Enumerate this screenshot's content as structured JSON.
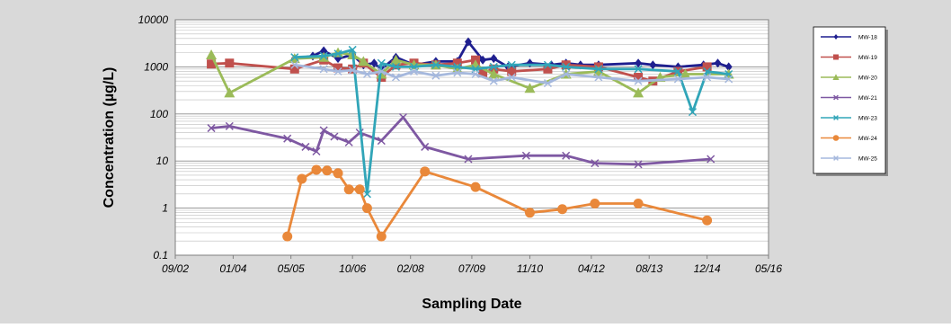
{
  "chart_data": {
    "type": "line",
    "title": "",
    "xlabel": "Sampling Date",
    "ylabel": "Concentration (µg/L)",
    "yscale": "log",
    "ylim": [
      0.1,
      10000
    ],
    "xlim": [
      "2002-09-01",
      "2016-05-01"
    ],
    "grid": true,
    "legend_position": "right",
    "x_ticks": [
      "09/02",
      "01/04",
      "05/05",
      "10/06",
      "02/08",
      "07/09",
      "11/10",
      "04/12",
      "08/13",
      "12/14",
      "05/16"
    ],
    "y_ticks": [
      "0.1",
      "1",
      "10",
      "100",
      "1000",
      "10000"
    ],
    "series": [
      {
        "name": "MW-18",
        "color": "#1f1f8f",
        "marker": "diamond",
        "points": [
          [
            "2005-06-01",
            1500
          ],
          [
            "2005-11-01",
            1700
          ],
          [
            "2006-02-01",
            2200
          ],
          [
            "2006-06-01",
            1500
          ],
          [
            "2006-10-01",
            1800
          ],
          [
            "2007-01-01",
            1100
          ],
          [
            "2007-04-01",
            1200
          ],
          [
            "2007-06-01",
            900
          ],
          [
            "2007-10-01",
            1600
          ],
          [
            "2008-03-01",
            1100
          ],
          [
            "2008-09-01",
            1300
          ],
          [
            "2009-03-01",
            1300
          ],
          [
            "2009-06-01",
            3400
          ],
          [
            "2009-10-01",
            1400
          ],
          [
            "2010-01-01",
            1500
          ],
          [
            "2010-05-01",
            1000
          ],
          [
            "2010-11-01",
            1200
          ],
          [
            "2011-05-01",
            1100
          ],
          [
            "2011-09-01",
            1200
          ],
          [
            "2012-01-01",
            1100
          ],
          [
            "2012-06-01",
            1100
          ],
          [
            "2013-05-01",
            1200
          ],
          [
            "2013-09-01",
            1100
          ],
          [
            "2014-04-01",
            1000
          ],
          [
            "2014-11-01",
            1100
          ],
          [
            "2015-03-01",
            1200
          ],
          [
            "2015-06-01",
            1000
          ]
        ]
      },
      {
        "name": "MW-19",
        "color": "#c0504d",
        "marker": "square",
        "points": [
          [
            "2003-07-01",
            1150
          ],
          [
            "2003-12-01",
            1200
          ],
          [
            "2005-06-01",
            900
          ],
          [
            "2006-02-01",
            1400
          ],
          [
            "2006-06-01",
            950
          ],
          [
            "2006-10-01",
            900
          ],
          [
            "2007-01-01",
            1200
          ],
          [
            "2007-06-01",
            600
          ],
          [
            "2007-10-01",
            1100
          ],
          [
            "2008-03-01",
            1200
          ],
          [
            "2008-09-01",
            1100
          ],
          [
            "2009-03-01",
            1200
          ],
          [
            "2009-08-01",
            1400
          ],
          [
            "2009-10-01",
            750
          ],
          [
            "2010-01-01",
            900
          ],
          [
            "2010-06-01",
            800
          ],
          [
            "2011-04-01",
            900
          ],
          [
            "2011-09-01",
            1100
          ],
          [
            "2012-06-01",
            1000
          ],
          [
            "2013-05-01",
            600
          ],
          [
            "2013-09-01",
            500
          ],
          [
            "2014-04-01",
            800
          ],
          [
            "2014-12-01",
            1000
          ]
        ]
      },
      {
        "name": "MW-20",
        "color": "#9bbb59",
        "marker": "triangle",
        "points": [
          [
            "2003-07-01",
            1800
          ],
          [
            "2003-12-01",
            280
          ],
          [
            "2005-06-01",
            1500
          ],
          [
            "2006-02-01",
            1600
          ],
          [
            "2006-06-01",
            2000
          ],
          [
            "2006-10-01",
            1800
          ],
          [
            "2007-01-01",
            1300
          ],
          [
            "2007-06-01",
            700
          ],
          [
            "2007-10-01",
            1400
          ],
          [
            "2008-03-01",
            1100
          ],
          [
            "2008-09-01",
            1100
          ],
          [
            "2009-03-01",
            900
          ],
          [
            "2009-08-01",
            1100
          ],
          [
            "2010-01-01",
            700
          ],
          [
            "2010-11-01",
            350
          ],
          [
            "2011-09-01",
            700
          ],
          [
            "2012-06-01",
            800
          ],
          [
            "2013-05-01",
            280
          ],
          [
            "2013-11-01",
            600
          ],
          [
            "2014-06-01",
            700
          ],
          [
            "2015-06-01",
            700
          ]
        ]
      },
      {
        "name": "MW-21",
        "color": "#7e58a2",
        "marker": "x",
        "points": [
          [
            "2003-07-01",
            50
          ],
          [
            "2003-12-01",
            55
          ],
          [
            "2005-04-01",
            30
          ],
          [
            "2005-09-01",
            20
          ],
          [
            "2005-12-01",
            16
          ],
          [
            "2006-02-01",
            45
          ],
          [
            "2006-05-01",
            33
          ],
          [
            "2006-09-01",
            25
          ],
          [
            "2006-12-01",
            40
          ],
          [
            "2007-06-01",
            27
          ],
          [
            "2007-12-01",
            85
          ],
          [
            "2008-06-01",
            20
          ],
          [
            "2009-06-01",
            11
          ],
          [
            "2010-10-01",
            13
          ],
          [
            "2011-09-01",
            13
          ],
          [
            "2012-05-01",
            9
          ],
          [
            "2013-05-01",
            8.5
          ],
          [
            "2015-01-01",
            11
          ]
        ]
      },
      {
        "name": "MW-23",
        "color": "#31a5b8",
        "marker": "x",
        "points": [
          [
            "2005-06-01",
            1600
          ],
          [
            "2006-02-01",
            1700
          ],
          [
            "2006-06-01",
            1900
          ],
          [
            "2006-10-01",
            2300
          ],
          [
            "2007-02-01",
            2
          ],
          [
            "2007-06-01",
            1200
          ],
          [
            "2007-10-01",
            1000
          ],
          [
            "2008-03-01",
            1000
          ],
          [
            "2008-09-01",
            1100
          ],
          [
            "2009-03-01",
            1000
          ],
          [
            "2009-08-01",
            900
          ],
          [
            "2010-01-01",
            1000
          ],
          [
            "2010-06-01",
            1100
          ],
          [
            "2011-04-01",
            1100
          ],
          [
            "2011-09-01",
            1000
          ],
          [
            "2012-06-01",
            900
          ],
          [
            "2013-05-01",
            900
          ],
          [
            "2014-04-01",
            800
          ],
          [
            "2014-08-01",
            110
          ],
          [
            "2014-12-01",
            800
          ],
          [
            "2015-06-01",
            700
          ]
        ]
      },
      {
        "name": "MW-24",
        "color": "#e9883a",
        "marker": "circle",
        "points": [
          [
            "2005-04-01",
            0.25
          ],
          [
            "2005-08-01",
            4.2
          ],
          [
            "2005-12-01",
            6.5
          ],
          [
            "2006-03-01",
            6.3
          ],
          [
            "2006-06-01",
            5.5
          ],
          [
            "2006-09-01",
            2.5
          ],
          [
            "2006-12-01",
            2.5
          ],
          [
            "2007-02-01",
            1
          ],
          [
            "2007-06-01",
            0.25
          ],
          [
            "2008-06-01",
            6
          ],
          [
            "2009-08-01",
            2.8
          ],
          [
            "2010-11-01",
            0.8
          ],
          [
            "2011-08-01",
            0.95
          ],
          [
            "2012-05-01",
            1.25
          ],
          [
            "2013-05-01",
            1.25
          ],
          [
            "2014-12-01",
            0.55
          ]
        ]
      },
      {
        "name": "MW-25",
        "color": "#a5b8dd",
        "marker": "x",
        "points": [
          [
            "2005-06-01",
            1100
          ],
          [
            "2006-02-01",
            900
          ],
          [
            "2006-06-01",
            800
          ],
          [
            "2006-10-01",
            850
          ],
          [
            "2007-02-01",
            700
          ],
          [
            "2007-06-01",
            800
          ],
          [
            "2007-10-01",
            600
          ],
          [
            "2008-03-01",
            800
          ],
          [
            "2008-09-01",
            650
          ],
          [
            "2009-03-01",
            750
          ],
          [
            "2009-08-01",
            700
          ],
          [
            "2010-01-01",
            500
          ],
          [
            "2010-06-01",
            600
          ],
          [
            "2011-04-01",
            450
          ],
          [
            "2011-09-01",
            700
          ],
          [
            "2012-06-01",
            600
          ],
          [
            "2013-05-01",
            500
          ],
          [
            "2014-04-01",
            550
          ],
          [
            "2014-12-01",
            600
          ],
          [
            "2015-06-01",
            550
          ]
        ]
      }
    ]
  }
}
